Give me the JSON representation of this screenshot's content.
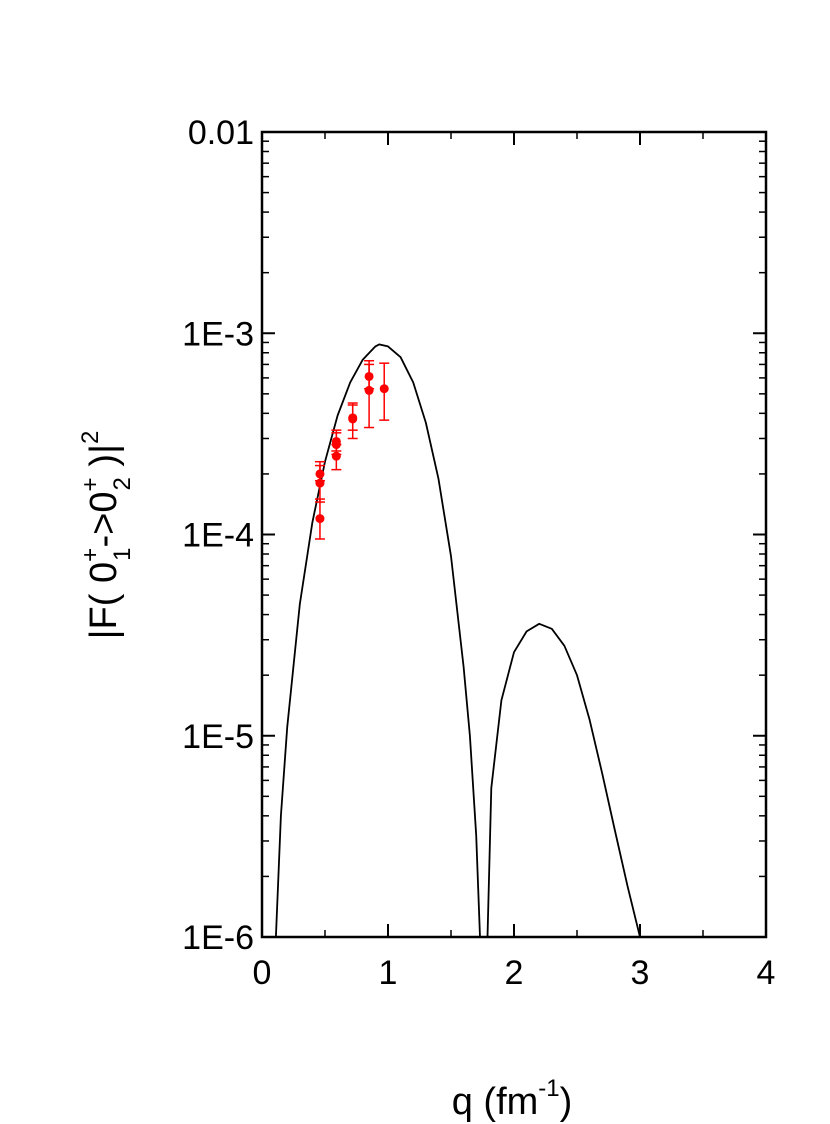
{
  "chart_data": {
    "type": "scatter",
    "xlabel": "q (fm",
    "xlabel_sup": "-1",
    "xlabel_end": ")",
    "ylabel": {
      "p1": "|F( 0",
      "sup1": "+",
      "sub1": "1",
      "p2": "->0",
      "sup2": "+",
      "sub2": "2",
      "p3": " )|",
      "sup3": "2"
    },
    "x_range": [
      0,
      4
    ],
    "y_range": [
      1e-06,
      0.01
    ],
    "y_scale": "log",
    "x_ticks": [
      {
        "value": 0,
        "label": "0"
      },
      {
        "value": 1,
        "label": "1"
      },
      {
        "value": 2,
        "label": "2"
      },
      {
        "value": 3,
        "label": "3"
      },
      {
        "value": 4,
        "label": "4"
      }
    ],
    "y_ticks": [
      {
        "value": 1e-06,
        "label": "1E-6"
      },
      {
        "value": 1e-05,
        "label": "1E-5"
      },
      {
        "value": 0.0001,
        "label": "1E-4"
      },
      {
        "value": 0.001,
        "label": "1E-3"
      },
      {
        "value": 0.01,
        "label": "0.01"
      }
    ],
    "series": [
      {
        "type": "line",
        "color": "#000000",
        "segments": [
          [
            [
              0.11,
              1e-06
            ],
            [
              0.15,
              4e-06
            ],
            [
              0.2,
              1.1e-05
            ],
            [
              0.3,
              4.5e-05
            ],
            [
              0.4,
              0.000115
            ],
            [
              0.5,
              0.00023
            ],
            [
              0.6,
              0.00039
            ],
            [
              0.7,
              0.00057
            ],
            [
              0.8,
              0.00074
            ],
            [
              0.9,
              0.00086
            ],
            [
              0.93,
              0.00088
            ],
            [
              1.0,
              0.00086
            ],
            [
              1.1,
              0.00076
            ],
            [
              1.2,
              0.00057
            ],
            [
              1.3,
              0.00036
            ],
            [
              1.4,
              0.00019
            ],
            [
              1.5,
              7.8e-05
            ],
            [
              1.6,
              2.2e-05
            ],
            [
              1.65,
              1e-05
            ],
            [
              1.7,
              3.2e-06
            ],
            [
              1.73,
              1e-06
            ]
          ],
          [
            [
              1.79,
              1e-06
            ],
            [
              1.82,
              5.5e-06
            ],
            [
              1.9,
              1.5e-05
            ],
            [
              2.0,
              2.6e-05
            ],
            [
              2.1,
              3.3e-05
            ],
            [
              2.2,
              3.6e-05
            ],
            [
              2.3,
              3.4e-05
            ],
            [
              2.4,
              2.8e-05
            ],
            [
              2.5,
              2e-05
            ],
            [
              2.6,
              1.2e-05
            ],
            [
              2.7,
              6.5e-06
            ],
            [
              2.8,
              3.4e-06
            ],
            [
              2.9,
              1.8e-06
            ],
            [
              3.0,
              1e-06
            ]
          ]
        ]
      },
      {
        "type": "scatter",
        "color": "#ff0000",
        "points": [
          {
            "x": 0.46,
            "y": 0.0002,
            "lo": 0.000185,
            "hi": 0.00023
          },
          {
            "x": 0.46,
            "y": 0.00018,
            "lo": 0.000145,
            "hi": 0.00022
          },
          {
            "x": 0.46,
            "y": 0.00012,
            "lo": 9.5e-05,
            "hi": 0.00015
          },
          {
            "x": 0.59,
            "y": 0.00029,
            "lo": 0.00026,
            "hi": 0.00032
          },
          {
            "x": 0.59,
            "y": 0.00028,
            "lo": 0.00025,
            "hi": 0.00033
          },
          {
            "x": 0.59,
            "y": 0.000245,
            "lo": 0.00021,
            "hi": 0.00028
          },
          {
            "x": 0.72,
            "y": 0.00038,
            "lo": 0.00033,
            "hi": 0.00044
          },
          {
            "x": 0.72,
            "y": 0.000375,
            "lo": 0.0003,
            "hi": 0.00045
          },
          {
            "x": 0.85,
            "y": 0.00061,
            "lo": 0.00053,
            "hi": 0.0007
          },
          {
            "x": 0.85,
            "y": 0.00052,
            "lo": 0.00034,
            "hi": 0.00073
          },
          {
            "x": 0.97,
            "y": 0.00053,
            "lo": 0.00037,
            "hi": 0.00071
          }
        ]
      }
    ]
  }
}
